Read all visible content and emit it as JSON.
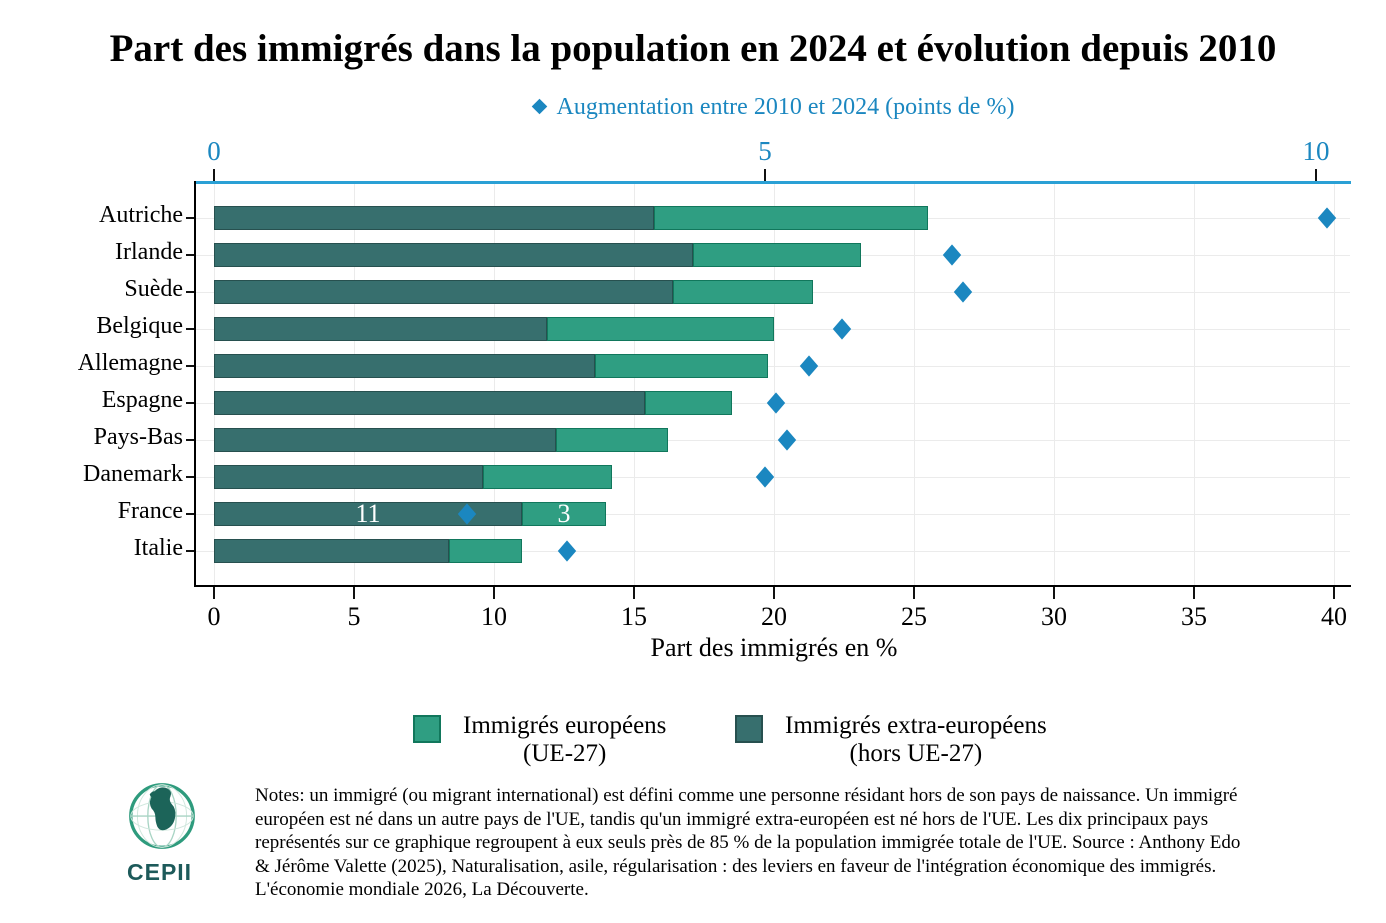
{
  "title": "Part des immigrés dans la population en 2024 et évolution depuis 2010",
  "top_legend": {
    "label": "Augmentation entre 2010 et 2024 (points de %)"
  },
  "chart_data": {
    "type": "bar",
    "orientation": "horizontal",
    "stacked": true,
    "grid": true,
    "legend_position": "bottom",
    "categories": [
      "Autriche",
      "Irlande",
      "Suède",
      "Belgique",
      "Allemagne",
      "Espagne",
      "Pays-Bas",
      "Danemark",
      "France",
      "Italie"
    ],
    "series": [
      {
        "name": "Immigrés extra-européens (hors UE-27)",
        "color": "#376f6e",
        "values": [
          15.7,
          17.1,
          16.4,
          11.9,
          13.6,
          15.4,
          12.2,
          9.6,
          11,
          8.4
        ]
      },
      {
        "name": "Immigrés européens (UE-27)",
        "color": "#2f9e82",
        "values": [
          9.8,
          6.0,
          5.0,
          8.1,
          6.2,
          3.1,
          4.0,
          4.6,
          3,
          2.6
        ]
      }
    ],
    "totals": [
      25.5,
      23.1,
      21.4,
      20.0,
      19.8,
      18.5,
      16.2,
      14.2,
      14.0,
      11.0
    ],
    "scatter_series": {
      "name": "Augmentation entre 2010 et 2024 (points de %)",
      "axis": "top",
      "marker": "diamond",
      "color": "#1b87c0",
      "values": [
        10.1,
        6.7,
        6.8,
        5.7,
        5.4,
        5.1,
        5.2,
        5.0,
        2.3,
        3.2
      ]
    },
    "bar_value_labels": {
      "France": {
        "extra_eu": "11",
        "eu": "3"
      }
    },
    "x_bottom": {
      "label": "Part des immigrés en %",
      "range": [
        0,
        40
      ],
      "ticks": [
        0,
        5,
        10,
        15,
        20,
        25,
        30,
        35,
        40
      ]
    },
    "x_top": {
      "range": [
        0,
        10
      ],
      "ticks": [
        0,
        5,
        10
      ]
    }
  },
  "legend": {
    "items": [
      {
        "line1": "Immigrés européens",
        "line2": "(UE-27)",
        "color": "#2f9e82"
      },
      {
        "line1": "Immigrés extra-européens",
        "line2": "(hors UE-27)",
        "color": "#376f6e"
      }
    ]
  },
  "notes": "Notes: un immigré (ou migrant international) est défini comme une personne résidant hors de son pays de naissance. Un immigré européen est né dans un autre pays de l'UE, tandis qu'un immigré extra-européen est né hors de l'UE. Les dix principaux pays représentés sur ce graphique regroupent à eux seuls près de 85 % de la population immigrée totale de l'UE. Source : Anthony Edo & Jérôme Valette (2025), Naturalisation, asile, régularisation : des leviers en faveur de l'intégration économique des immigrés. L'économie mondiale 2026, La Découverte.",
  "logo": {
    "text": "CEPII"
  },
  "colors": {
    "accent_blue": "#1b87c0",
    "axis_blue_line": "#2aa0d5",
    "bar_green": "#2f9e82",
    "bar_green_border": "#11775c",
    "bar_teal": "#376f6e",
    "bar_teal_border": "#27504f",
    "grid": "#ebebeb"
  }
}
